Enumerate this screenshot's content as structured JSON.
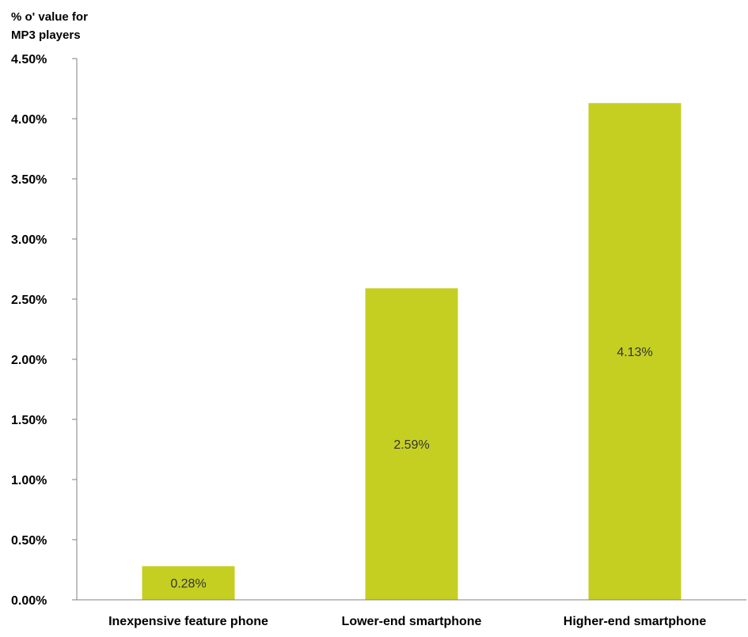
{
  "chart_data": {
    "type": "bar",
    "ylabel_lines": [
      "% o' value for",
      "MP3 players"
    ],
    "xlabel": "",
    "categories": [
      "Inexpensive feature phone",
      "Lower-end smartphone",
      "Higher-end smartphone"
    ],
    "values": [
      0.28,
      2.59,
      4.13
    ],
    "data_labels": [
      "0.28%",
      "2.59%",
      "4.13%"
    ],
    "ylim": [
      0,
      4.5
    ],
    "yticks": [
      0,
      0.5,
      1.0,
      1.5,
      2.0,
      2.5,
      3.0,
      3.5,
      4.0,
      4.5
    ],
    "ytick_labels": [
      "0.00%",
      "0.50%",
      "1.00%",
      "1.50%",
      "2.00%",
      "2.50%",
      "3.00%",
      "3.50%",
      "4.00%",
      "4.50%"
    ],
    "grid": false,
    "legend": "none",
    "colors": {
      "bar": "#c5cf22",
      "axis": "#808080"
    }
  }
}
